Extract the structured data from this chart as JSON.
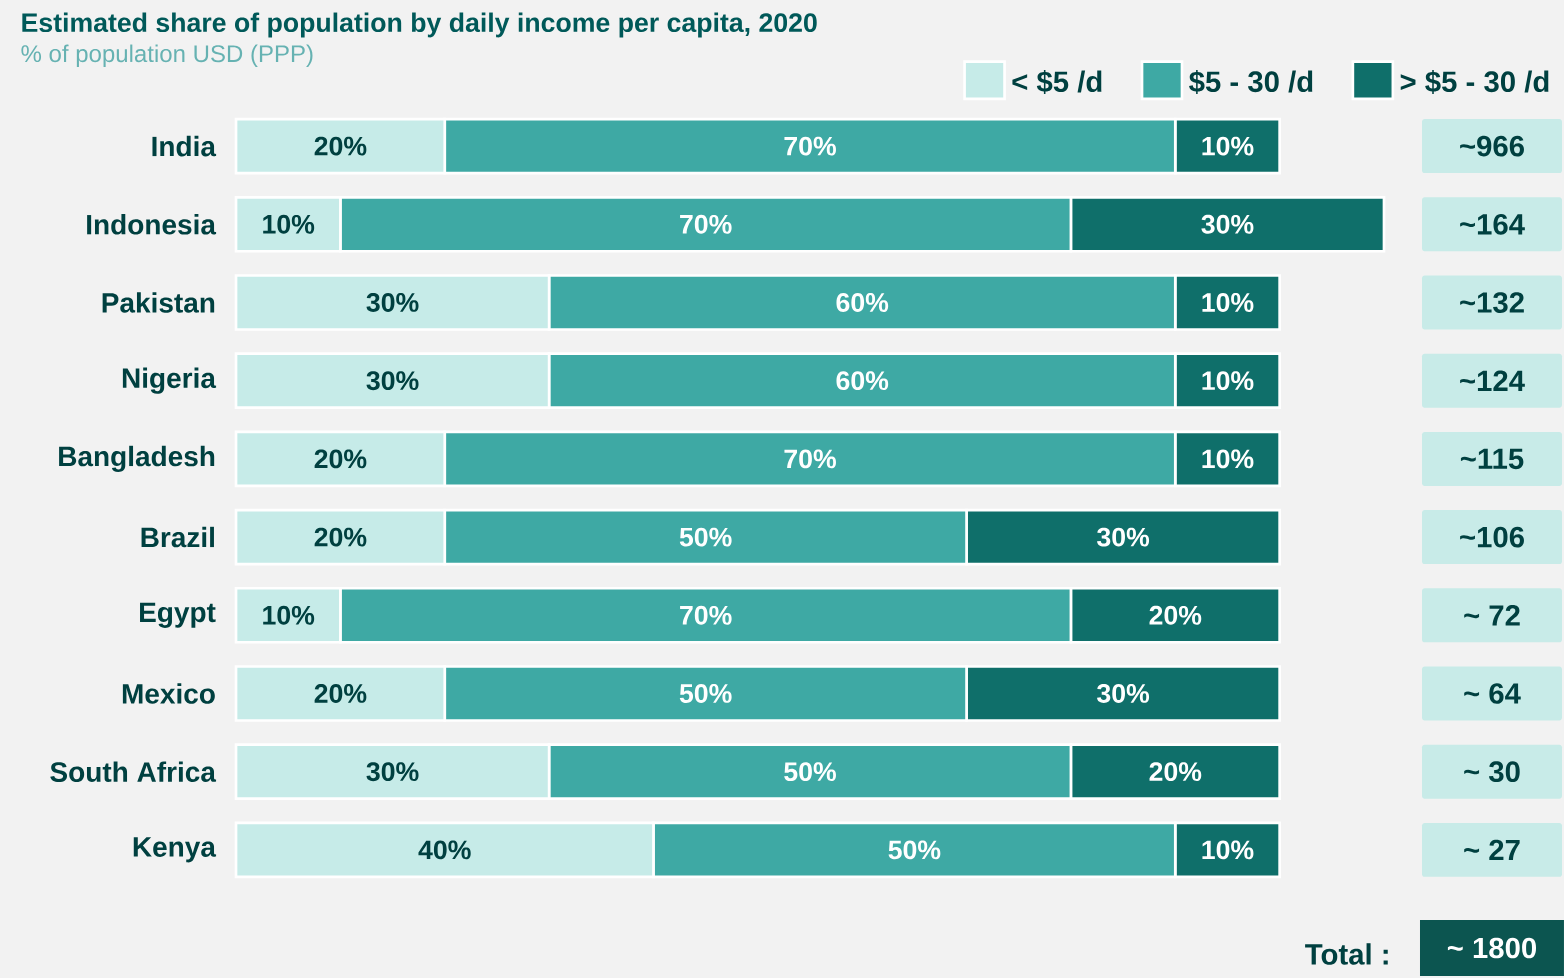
{
  "chart_data": {
    "type": "bar",
    "orientation": "horizontal",
    "stacked": true,
    "legend": "top right",
    "title": "Estimated share of population by daily income per capita, 2020",
    "subtitle": "% of population USD (PPP)",
    "categories": [
      "India",
      "Indonesia",
      "Pakistan",
      "Nigeria",
      "Bangladesh",
      "Brazil",
      "Egypt",
      "Mexico",
      "South Africa",
      "Kenya"
    ],
    "series": [
      {
        "name": "< $5 /d",
        "color": "#c6ebe8",
        "values": [
          20,
          10,
          30,
          30,
          20,
          20,
          10,
          20,
          30,
          40
        ],
        "value_labels": [
          "20%",
          "10%",
          "30%",
          "30%",
          "20%",
          "20%",
          "10%",
          "20%",
          "30%",
          "40%"
        ]
      },
      {
        "name": "$5 - 30 /d",
        "color": "#3ea9a4",
        "values": [
          70,
          70,
          60,
          60,
          70,
          50,
          70,
          50,
          50,
          50
        ],
        "value_labels": [
          "70%",
          "70%",
          "60%",
          "60%",
          "70%",
          "50%",
          "70%",
          "50%",
          "50%",
          "50%"
        ]
      },
      {
        "name": "> $5 - 30 /d",
        "color": "#0f6f6a",
        "values": [
          10,
          30,
          10,
          10,
          10,
          30,
          20,
          30,
          20,
          10
        ],
        "value_labels": [
          "10%",
          "30%",
          "10%",
          "10%",
          "10%",
          "30%",
          "20%",
          "30%",
          "20%",
          "10%"
        ]
      }
    ],
    "annotations": [
      "~966",
      "~164",
      "~132",
      "~124",
      "~115",
      "~106",
      "~ 72",
      "~ 64",
      "~ 30",
      "~ 27",
      "Total :",
      "~ 1800"
    ]
  }
}
